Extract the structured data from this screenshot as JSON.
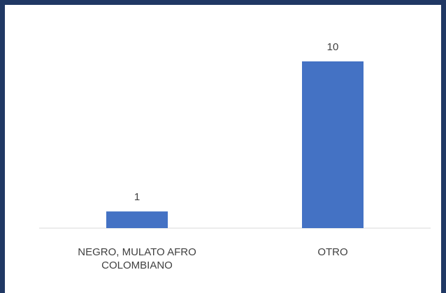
{
  "chart_data": {
    "type": "bar",
    "categories": [
      "NEGRO, MULATO AFRO COLOMBIANO",
      "OTRO"
    ],
    "values": [
      1,
      10
    ],
    "color": "#4472c4"
  }
}
